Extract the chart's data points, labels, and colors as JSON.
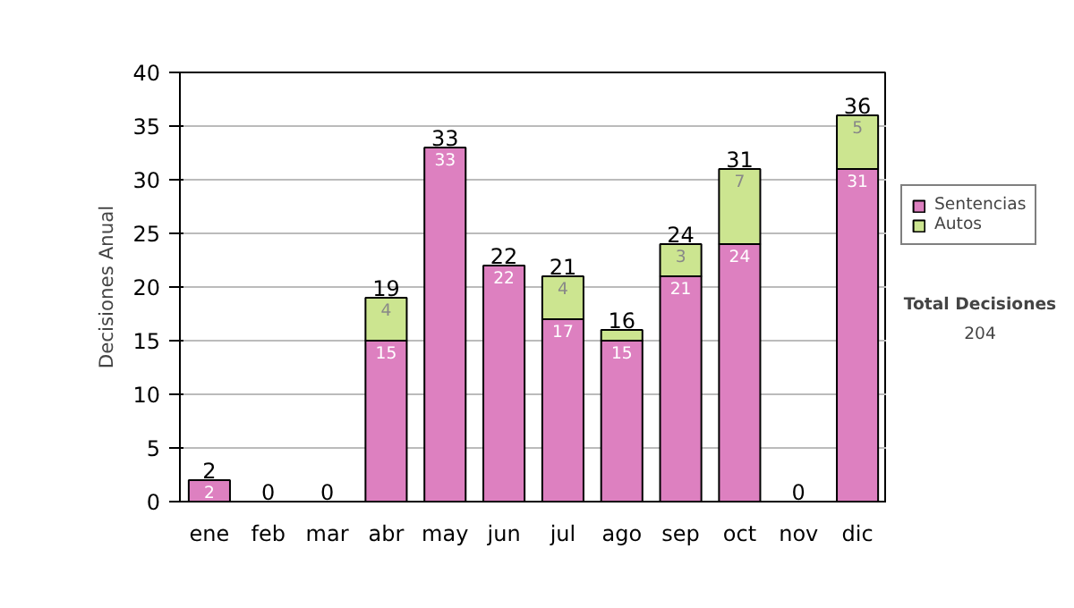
{
  "chart_data": {
    "type": "bar",
    "stacked": true,
    "ylabel": "Decisiones Anual",
    "categories": [
      "ene",
      "feb",
      "mar",
      "abr",
      "may",
      "jun",
      "jul",
      "ago",
      "sep",
      "oct",
      "nov",
      "dic"
    ],
    "series": [
      {
        "name": "Sentencias",
        "color": "#dd80c0",
        "values": [
          2,
          0,
          0,
          15,
          33,
          22,
          17,
          15,
          21,
          24,
          0,
          31
        ],
        "value_labels": [
          "2",
          null,
          null,
          "15",
          "33",
          "22",
          "17",
          "15",
          "21",
          "24",
          null,
          "31"
        ]
      },
      {
        "name": "Autos",
        "color": "#cce590",
        "values": [
          0,
          0,
          0,
          4,
          0,
          0,
          4,
          1,
          3,
          7,
          0,
          5
        ],
        "value_labels": [
          null,
          null,
          null,
          "4",
          null,
          null,
          "4",
          null,
          "3",
          "7",
          null,
          "5"
        ]
      }
    ],
    "totals": [
      "2",
      "0",
      "0",
      "19",
      "33",
      "22",
      "21",
      "16",
      "24",
      "31",
      "0",
      "36"
    ],
    "ylim": [
      0,
      40
    ],
    "yticks": [
      0,
      5,
      10,
      15,
      20,
      25,
      30,
      35,
      40
    ],
    "grid": "y",
    "legend": "right",
    "annotations": [
      "Total Decisiones",
      "204"
    ]
  }
}
